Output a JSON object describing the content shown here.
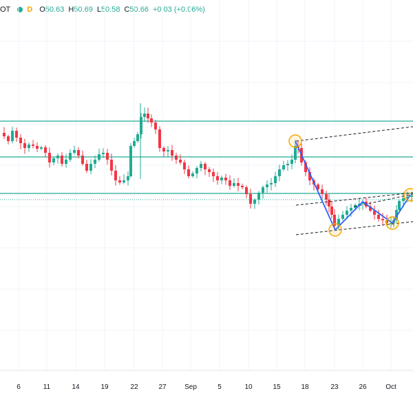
{
  "legend": {
    "symbol": "OT",
    "timeframe": "D",
    "open_label": "O",
    "open": "50.63",
    "high_label": "H",
    "high": "50.69",
    "low_label": "L",
    "low": "50.58",
    "close_label": "C",
    "close": "50.66",
    "change": "+0.03 (+0.06%)"
  },
  "colors": {
    "up": "#22ab94",
    "down": "#f23645",
    "level_line": "#22ab94",
    "zigzag": "#2962ff",
    "marker": "#f7a600",
    "channel": "#131722",
    "grid": "#f0f3fa"
  },
  "chart_data": {
    "type": "candlestick",
    "x_tick_labels": [
      "6",
      "11",
      "14",
      "19",
      "22",
      "27",
      "Sep",
      "5",
      "10",
      "15",
      "18",
      "23",
      "26",
      "Oct"
    ],
    "y_axis_visible": false,
    "annotations": {
      "horizontal_levels": 3,
      "dotted_level": 1,
      "zigzag_pivots": 5,
      "circle_markers": 4,
      "dashed_channel_lines": 4
    }
  }
}
